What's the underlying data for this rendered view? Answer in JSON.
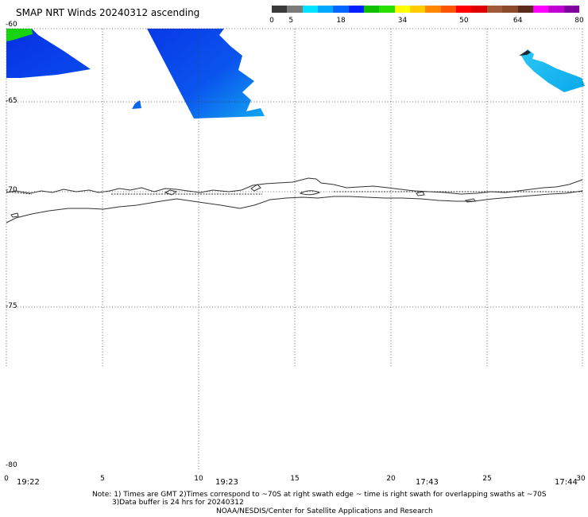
{
  "header": {
    "title": "SMAP NRT Winds 20240312 ascending"
  },
  "colorbar": {
    "segments": [
      {
        "color": "#3a3a3a"
      },
      {
        "color": "#7a7a7a"
      },
      {
        "color": "#00e5ff"
      },
      {
        "color": "#00a8ff"
      },
      {
        "color": "#0066ff"
      },
      {
        "color": "#0020ff"
      },
      {
        "color": "#10c000"
      },
      {
        "color": "#28e000"
      },
      {
        "color": "#ffff00"
      },
      {
        "color": "#ffcc00"
      },
      {
        "color": "#ff8800"
      },
      {
        "color": "#ff5500"
      },
      {
        "color": "#ff0000"
      },
      {
        "color": "#e00000"
      },
      {
        "color": "#a05a3a"
      },
      {
        "color": "#8a4a2a"
      },
      {
        "color": "#5a2a1a"
      },
      {
        "color": "#ff00ff"
      },
      {
        "color": "#c000d0"
      },
      {
        "color": "#8000a0"
      }
    ],
    "labels": [
      "0",
      "5",
      "18",
      "34",
      "50",
      "64",
      "80"
    ]
  },
  "axes": {
    "lat_labels": [
      "-60",
      "-65",
      "-70",
      "-75",
      "-80"
    ],
    "lon_labels": [
      "0",
      "5",
      "10",
      "15",
      "20",
      "25",
      "30"
    ],
    "time_labels": [
      "19:22",
      "19:23",
      "17:43",
      "17:44"
    ]
  },
  "footer": {
    "note_line1": "Note: 1) Times are GMT 2)Times correspond to ~70S at right swath edge ~ time is right swath for overlapping swaths at ~70S",
    "note_line2": "3)Data buffer is 24 hrs for 20240312",
    "credit": "NOAA/NESDIS/Center for Satellite Applications and Research"
  },
  "colors": {
    "wind_blue": "#0a3fe8",
    "wind_mid": "#0a6cf0",
    "wind_cyan": "#14b8ee",
    "wind_green": "#18d410",
    "coast": "#333333"
  }
}
